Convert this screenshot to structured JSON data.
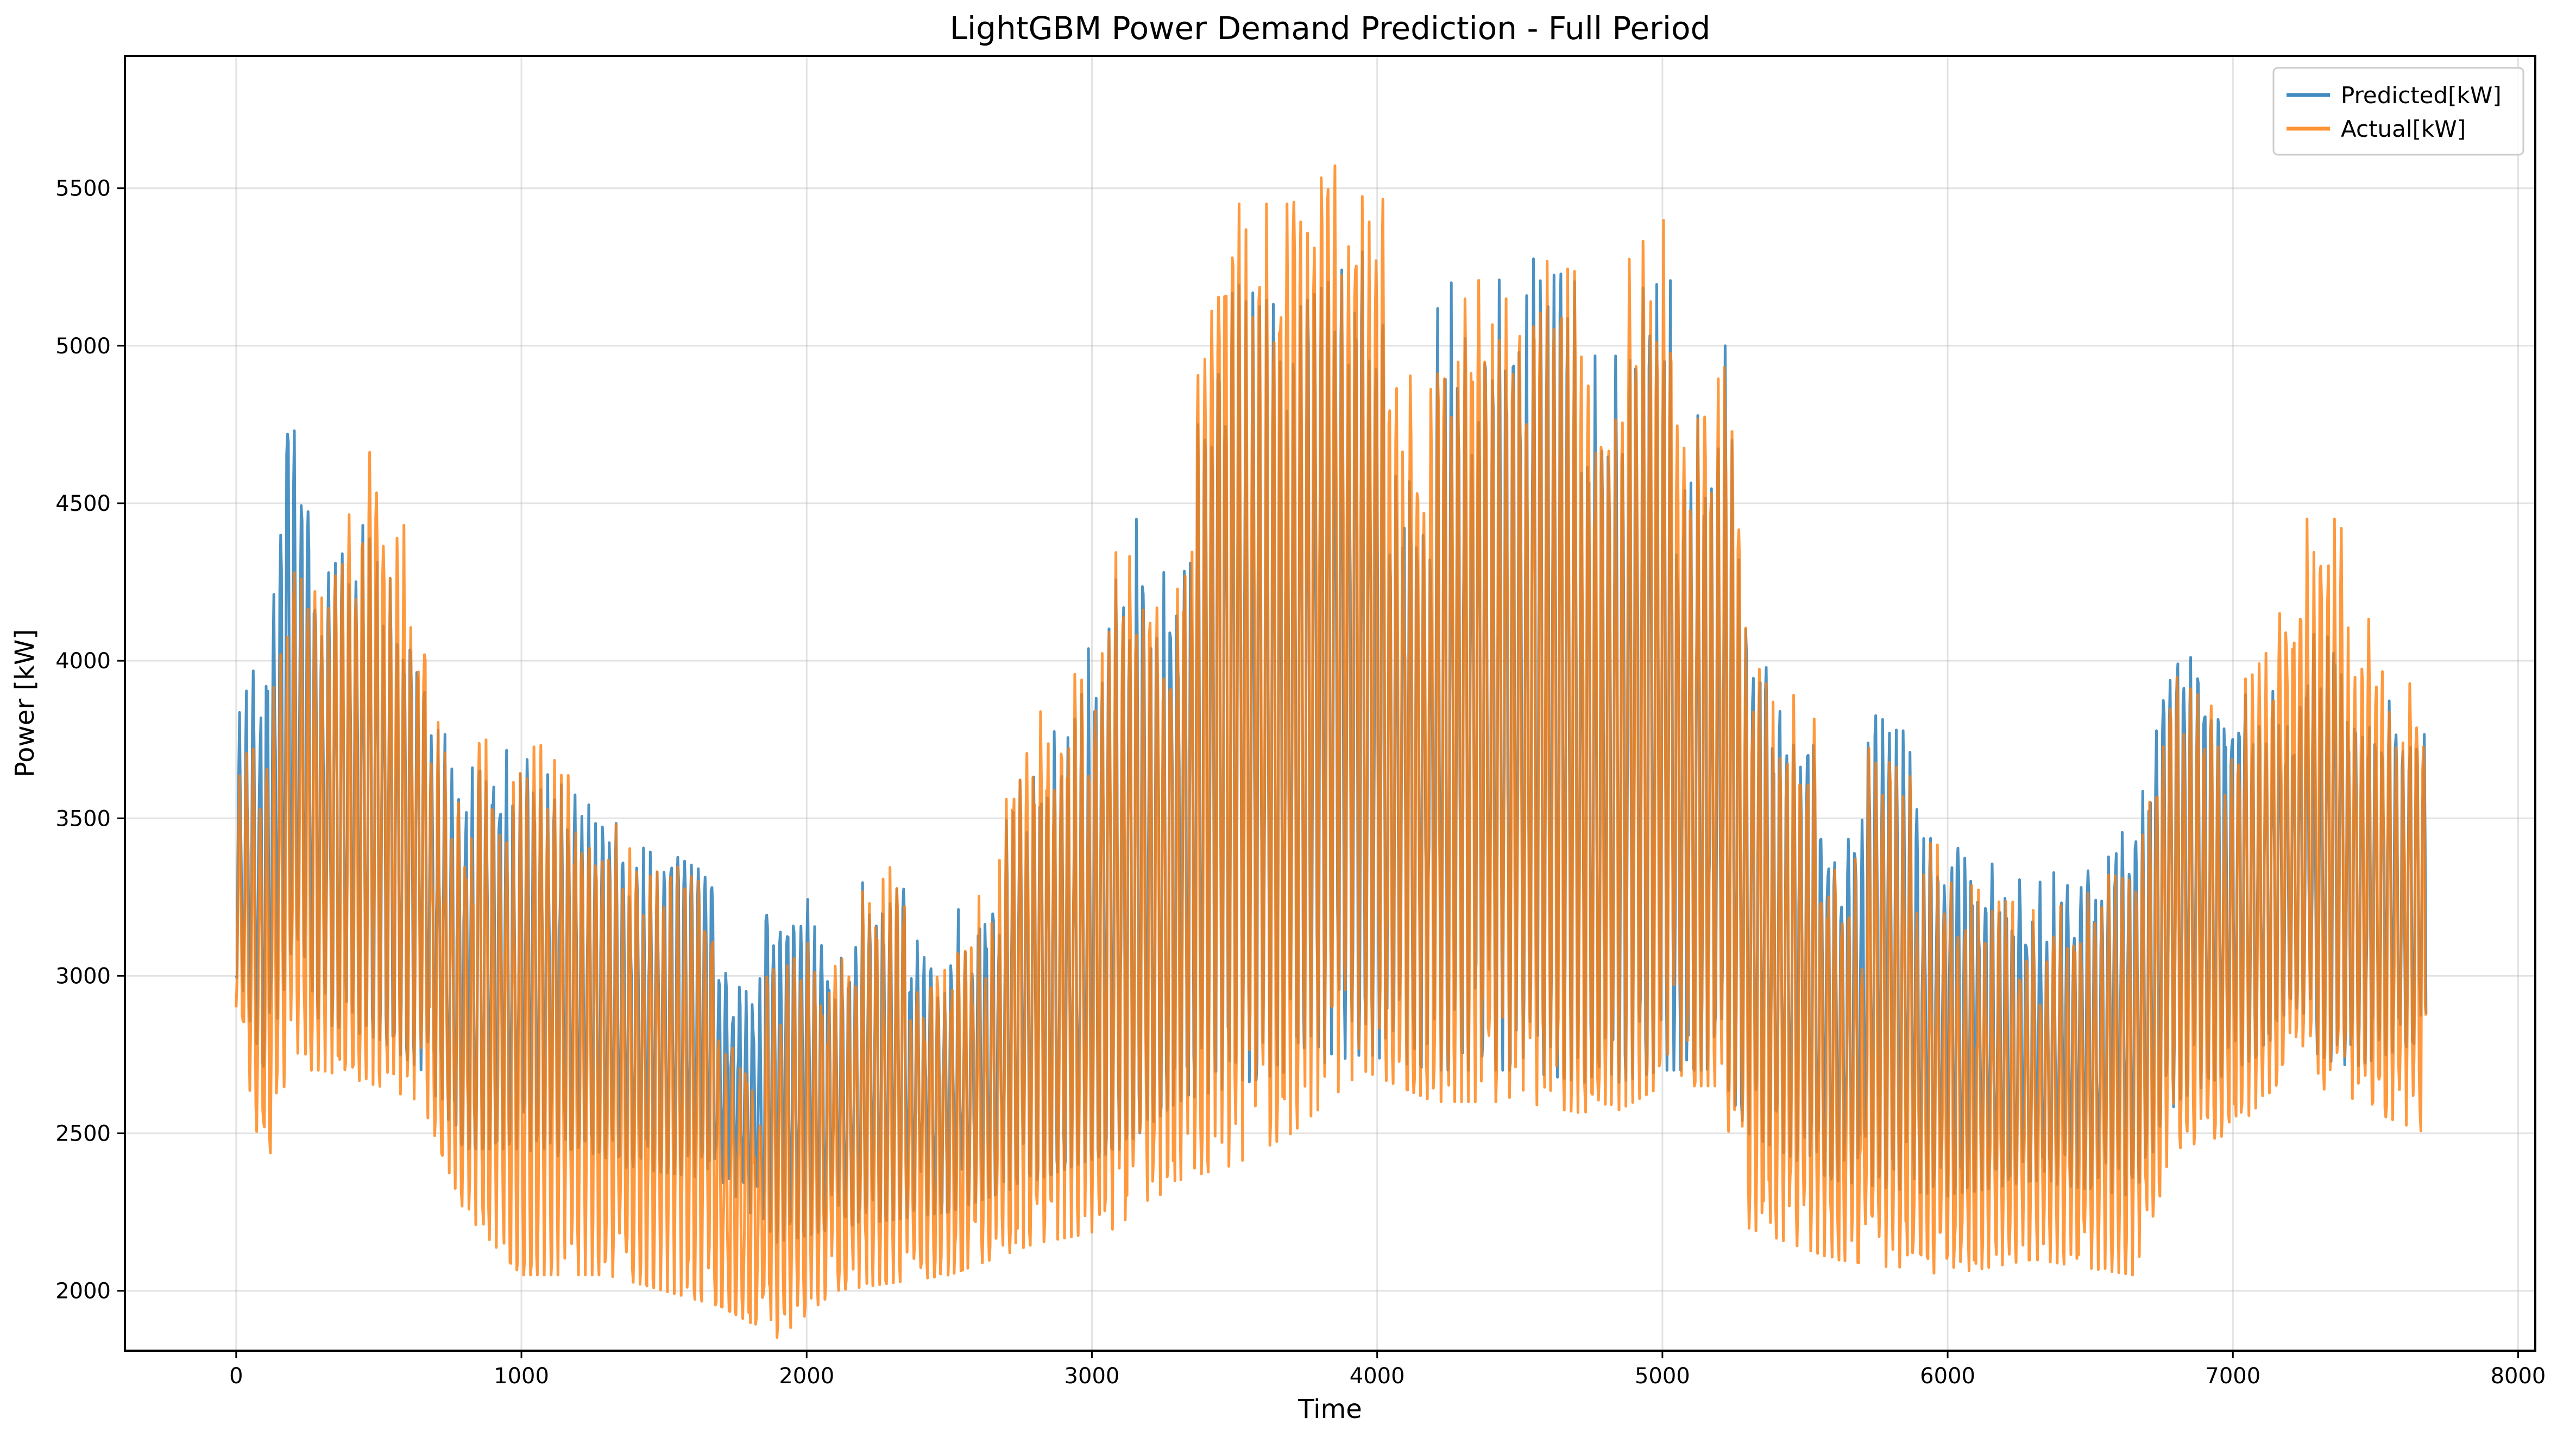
{
  "chart_data": {
    "type": "line",
    "title": "LightGBM Power Demand Prediction - Full Period",
    "xlabel": "Time",
    "ylabel": "Power [kW]",
    "xlim": [
      -390,
      8060
    ],
    "ylim": [
      1810,
      5920
    ],
    "xticks": [
      0,
      1000,
      2000,
      3000,
      4000,
      5000,
      6000,
      7000,
      8000
    ],
    "yticks": [
      2000,
      2500,
      3000,
      3500,
      4000,
      4500,
      5000,
      5500
    ],
    "grid": true,
    "legend_position": "top-right",
    "n_points": 7680,
    "envelope_note_x": [
      0,
      100,
      180,
      300,
      500,
      650,
      800,
      1000,
      1300,
      1700,
      1900,
      2100,
      2500,
      2800,
      3100,
      3300,
      3500,
      3700,
      3950,
      4200,
      4500,
      4800,
      5000,
      5200,
      5300,
      5600,
      6000,
      6300,
      6650,
      6800,
      7000,
      7200,
      7400,
      7680
    ],
    "series": [
      {
        "name": "Predicted[kW]",
        "color": "#1f77b4",
        "envelope_max": [
          3850,
          4100,
          4850,
          4250,
          4500,
          4200,
          4050,
          3700,
          3500,
          3300,
          3250,
          3250,
          3450,
          3750,
          4450,
          4600,
          5200,
          5100,
          5300,
          5300,
          5300,
          5150,
          5200,
          5250,
          4000,
          3900,
          3700,
          3500,
          3450,
          4050,
          3900,
          4000,
          4200,
          4150
        ],
        "envelope_min": [
          3000,
          2700,
          3000,
          2850,
          2800,
          2700,
          2450,
          2450,
          2400,
          2350,
          2150,
          2200,
          2250,
          2350,
          2450,
          2600,
          2650,
          2700,
          2750,
          2700,
          2700,
          2650,
          2700,
          2700,
          2500,
          2350,
          2300,
          2350,
          2300,
          2600,
          2700,
          2800,
          2700,
          2800
        ]
      },
      {
        "name": "Actual[kW]",
        "color": "#ff7f0e",
        "envelope_max": [
          3700,
          3800,
          4300,
          4200,
          4750,
          4300,
          4000,
          3800,
          3500,
          3250,
          3000,
          3200,
          3500,
          3900,
          4500,
          4600,
          5450,
          5450,
          5650,
          5350,
          5300,
          5200,
          5400,
          5300,
          4000,
          3800,
          3550,
          3400,
          3300,
          3950,
          3800,
          4450,
          4450,
          4200
        ],
        "envelope_min": [
          2900,
          2350,
          2700,
          2700,
          2650,
          2600,
          2250,
          2050,
          2050,
          1950,
          1850,
          2000,
          2050,
          2150,
          2200,
          2350,
          2400,
          2500,
          2700,
          2600,
          2600,
          2550,
          2650,
          2650,
          2200,
          2100,
          2050,
          2100,
          2050,
          2450,
          2500,
          2700,
          2600,
          2500
        ]
      }
    ]
  }
}
